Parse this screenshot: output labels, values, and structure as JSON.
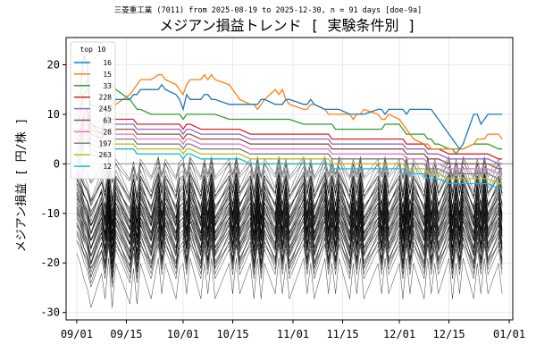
{
  "chart_data": {
    "type": "line",
    "suptitle": "三菱重工業 (7011) from 2025-08-19 to 2025-12-30, n = 91 days [doe-9a]",
    "title": "メジアン損益トレンド [ 実験条件別 ]",
    "xlabel": "",
    "ylabel": "メジアン損益 [ 円/株 ]",
    "xlim": [
      "2025-08-29",
      "2026-01-02"
    ],
    "ylim": [
      -31.5,
      25.5
    ],
    "x_ticks": [
      "09/01",
      "09/15",
      "10/01",
      "10/15",
      "11/01",
      "11/15",
      "12/01",
      "12/15",
      "01/01"
    ],
    "x_tick_dates": [
      "2025-09-01",
      "2025-09-15",
      "2025-10-01",
      "2025-10-15",
      "2025-11-01",
      "2025-11-15",
      "2025-12-01",
      "2025-12-15",
      "2026-01-01"
    ],
    "y_ticks": [
      -30,
      -20,
      -10,
      0,
      10,
      20
    ],
    "grid": true,
    "zero_line": 0,
    "legend": {
      "title": "top 10",
      "placement": "upper-left"
    },
    "x": [
      "2025-09-01",
      "2025-09-02",
      "2025-09-03",
      "2025-09-04",
      "2025-09-05",
      "2025-09-08",
      "2025-09-09",
      "2025-09-10",
      "2025-09-11",
      "2025-09-12",
      "2025-09-16",
      "2025-09-17",
      "2025-09-18",
      "2025-09-19",
      "2025-09-22",
      "2025-09-24",
      "2025-09-25",
      "2025-09-26",
      "2025-09-29",
      "2025-09-30",
      "2025-10-01",
      "2025-10-02",
      "2025-10-03",
      "2025-10-06",
      "2025-10-07",
      "2025-10-08",
      "2025-10-09",
      "2025-10-10",
      "2025-10-14",
      "2025-10-15",
      "2025-10-16",
      "2025-10-17",
      "2025-10-20",
      "2025-10-21",
      "2025-10-22",
      "2025-10-23",
      "2025-10-24",
      "2025-10-27",
      "2025-10-28",
      "2025-10-29",
      "2025-10-30",
      "2025-10-31",
      "2025-11-04",
      "2025-11-05",
      "2025-11-06",
      "2025-11-07",
      "2025-11-10",
      "2025-11-11",
      "2025-11-12",
      "2025-11-13",
      "2025-11-14",
      "2025-11-17",
      "2025-11-18",
      "2025-11-19",
      "2025-11-20",
      "2025-11-21",
      "2025-11-25",
      "2025-11-26",
      "2025-11-27",
      "2025-11-28",
      "2025-12-01",
      "2025-12-02",
      "2025-12-03",
      "2025-12-04",
      "2025-12-05",
      "2025-12-08",
      "2025-12-09",
      "2025-12-10",
      "2025-12-11",
      "2025-12-12",
      "2025-12-15",
      "2025-12-16",
      "2025-12-17",
      "2025-12-18",
      "2025-12-19",
      "2025-12-22",
      "2025-12-23",
      "2025-12-24",
      "2025-12-25",
      "2025-12-26",
      "2025-12-29",
      "2025-12-30"
    ],
    "series": [
      {
        "name": "16",
        "color": "#1f77b4",
        "values": [
          13,
          14,
          22,
          20,
          8,
          6,
          10,
          11,
          12,
          13,
          13,
          14,
          14,
          15,
          15,
          15,
          16,
          15,
          14,
          13,
          11,
          14,
          13,
          13,
          14,
          14,
          13,
          13,
          12,
          12,
          12,
          12,
          12,
          12,
          12,
          13,
          13,
          12,
          12,
          12,
          13,
          13,
          12,
          12,
          13,
          12,
          11,
          11,
          11,
          11,
          11,
          10,
          10,
          10,
          10,
          10,
          11,
          11,
          10,
          11,
          11,
          11,
          10,
          11,
          11,
          11,
          11,
          11,
          10,
          9,
          6,
          5,
          4,
          3,
          4,
          10,
          10,
          8,
          9,
          10,
          10,
          10
        ]
      },
      {
        "name": "15",
        "color": "#ff7f0e",
        "values": [
          10,
          11,
          16,
          17,
          7,
          5,
          9,
          10,
          11,
          12,
          14,
          15,
          16,
          17,
          17,
          18,
          18,
          17,
          16,
          15,
          14,
          16,
          17,
          17,
          18,
          17,
          18,
          17,
          16,
          15,
          14,
          13,
          12,
          12,
          11,
          12,
          13,
          15,
          14,
          15,
          13,
          12,
          11,
          11,
          12,
          12,
          11,
          10,
          10,
          10,
          10,
          10,
          9,
          10,
          10,
          11,
          10,
          9,
          9,
          10,
          9,
          8,
          7,
          6,
          5,
          4,
          4,
          3,
          3,
          3,
          3,
          3,
          3,
          3,
          3,
          4,
          5,
          5,
          5,
          6,
          6,
          5
        ]
      },
      {
        "name": "33",
        "color": "#2ca02c",
        "values": [
          8,
          10,
          14,
          15,
          12,
          11,
          13,
          17,
          16,
          15,
          13,
          12,
          11,
          11,
          10,
          10,
          10,
          10,
          10,
          10,
          9,
          10,
          10,
          10,
          10,
          10,
          10,
          10,
          9,
          9,
          9,
          9,
          9,
          9,
          9,
          9,
          9,
          9,
          9,
          9,
          9,
          9,
          8,
          8,
          8,
          8,
          8,
          8,
          8,
          7,
          7,
          7,
          7,
          7,
          7,
          7,
          7,
          7,
          8,
          8,
          8,
          7,
          6,
          6,
          6,
          6,
          5,
          5,
          4,
          4,
          3,
          3,
          2,
          3,
          3,
          4,
          4,
          4,
          4,
          4,
          3,
          3
        ]
      },
      {
        "name": "228",
        "color": "#d62728",
        "values": [
          6,
          7,
          10,
          11,
          8,
          7,
          8,
          9,
          9,
          9,
          9,
          9,
          8,
          8,
          8,
          8,
          8,
          8,
          8,
          8,
          7,
          8,
          8,
          7,
          7,
          7,
          7,
          7,
          7,
          7,
          7,
          7,
          6,
          6,
          6,
          6,
          6,
          6,
          6,
          6,
          6,
          6,
          6,
          6,
          6,
          6,
          6,
          6,
          5,
          5,
          5,
          5,
          5,
          5,
          5,
          5,
          5,
          5,
          5,
          5,
          5,
          5,
          4,
          4,
          4,
          4,
          3,
          3,
          3,
          3,
          2,
          2,
          2,
          2,
          2,
          2,
          2,
          2,
          2,
          2,
          1,
          1
        ]
      },
      {
        "name": "245",
        "color": "#9467bd",
        "values": [
          5,
          6,
          9,
          10,
          7,
          6,
          7,
          8,
          8,
          8,
          8,
          8,
          7,
          7,
          7,
          7,
          7,
          7,
          7,
          7,
          6,
          7,
          7,
          6,
          6,
          6,
          6,
          6,
          6,
          6,
          6,
          6,
          5,
          5,
          5,
          5,
          5,
          5,
          5,
          5,
          5,
          5,
          5,
          5,
          5,
          5,
          5,
          5,
          4,
          4,
          4,
          4,
          4,
          4,
          4,
          4,
          4,
          4,
          4,
          4,
          4,
          4,
          3,
          3,
          3,
          3,
          2,
          2,
          2,
          2,
          1,
          1,
          1,
          1,
          1,
          1,
          1,
          1,
          1,
          1,
          0,
          0
        ]
      },
      {
        "name": "63",
        "color": "#8c564b",
        "values": [
          4,
          5,
          8,
          9,
          6,
          5,
          6,
          7,
          7,
          7,
          7,
          7,
          6,
          6,
          6,
          6,
          6,
          6,
          6,
          6,
          5,
          6,
          6,
          5,
          5,
          5,
          5,
          5,
          5,
          5,
          5,
          5,
          4,
          4,
          4,
          4,
          4,
          4,
          4,
          4,
          4,
          4,
          4,
          4,
          4,
          4,
          4,
          4,
          3,
          3,
          3,
          3,
          3,
          3,
          3,
          3,
          3,
          3,
          3,
          3,
          3,
          3,
          2,
          2,
          2,
          2,
          1,
          1,
          1,
          1,
          0,
          0,
          0,
          0,
          0,
          0,
          0,
          0,
          0,
          0,
          -1,
          -1
        ]
      },
      {
        "name": "28",
        "color": "#e377c2",
        "values": [
          3,
          4,
          7,
          8,
          5,
          4,
          5,
          6,
          6,
          6,
          6,
          6,
          5,
          5,
          5,
          5,
          5,
          5,
          5,
          5,
          4,
          5,
          5,
          4,
          4,
          4,
          4,
          4,
          4,
          4,
          4,
          4,
          3,
          3,
          3,
          3,
          3,
          3,
          3,
          3,
          3,
          3,
          3,
          3,
          3,
          3,
          3,
          3,
          2,
          2,
          2,
          2,
          2,
          2,
          2,
          2,
          2,
          2,
          2,
          2,
          2,
          2,
          1,
          1,
          1,
          1,
          0,
          0,
          0,
          0,
          -1,
          -1,
          -1,
          -1,
          -1,
          -1,
          -1,
          -1,
          -1,
          -1,
          -2,
          -2
        ]
      },
      {
        "name": "197",
        "color": "#7f7f7f",
        "values": [
          2,
          3,
          6,
          7,
          4,
          3,
          4,
          5,
          5,
          5,
          5,
          5,
          4,
          4,
          4,
          4,
          4,
          4,
          4,
          4,
          3,
          4,
          4,
          3,
          3,
          3,
          3,
          3,
          3,
          3,
          3,
          3,
          2,
          2,
          2,
          2,
          2,
          2,
          2,
          2,
          2,
          2,
          2,
          2,
          2,
          2,
          2,
          2,
          1,
          1,
          1,
          1,
          1,
          1,
          1,
          1,
          1,
          1,
          1,
          1,
          1,
          1,
          0,
          0,
          0,
          0,
          -1,
          -1,
          -1,
          -1,
          -2,
          -2,
          -2,
          -2,
          -2,
          -2,
          -2,
          -2,
          -2,
          -2,
          -3,
          -3
        ]
      },
      {
        "name": "263",
        "color": "#bcbd22",
        "values": [
          1,
          2,
          5,
          6,
          3,
          2,
          3,
          4,
          4,
          4,
          4,
          4,
          3,
          3,
          3,
          3,
          3,
          3,
          3,
          3,
          2,
          3,
          3,
          2,
          2,
          2,
          2,
          2,
          2,
          2,
          2,
          2,
          1,
          1,
          1,
          1,
          1,
          1,
          1,
          1,
          1,
          1,
          1,
          1,
          1,
          1,
          1,
          1,
          0,
          0,
          0,
          0,
          0,
          0,
          0,
          0,
          0,
          0,
          0,
          0,
          0,
          0,
          -1,
          -1,
          -1,
          -1,
          -2,
          -2,
          -2,
          -2,
          -3,
          -3,
          -3,
          -3,
          -3,
          -3,
          -3,
          -3,
          -3,
          -3,
          -4,
          -4
        ]
      },
      {
        "name": "12",
        "color": "#17becf",
        "values": [
          0,
          1,
          4,
          5,
          2,
          1,
          2,
          3,
          3,
          3,
          3,
          3,
          2,
          2,
          2,
          2,
          2,
          2,
          2,
          2,
          1,
          2,
          2,
          1,
          1,
          1,
          1,
          1,
          1,
          1,
          1,
          1,
          0,
          0,
          0,
          0,
          0,
          0,
          0,
          0,
          0,
          0,
          0,
          0,
          0,
          0,
          0,
          0,
          -1,
          -1,
          -1,
          -1,
          -1,
          -1,
          -1,
          -1,
          -1,
          -1,
          -1,
          -1,
          -1,
          -1,
          -2,
          -2,
          -2,
          -2,
          -3,
          -3,
          -3,
          -3,
          -4,
          -4,
          -4,
          -4,
          -4,
          -4,
          -4,
          -4,
          -4,
          -4,
          -5,
          -5
        ]
      }
    ],
    "background_series": {
      "color": "#000000",
      "base_values": [
        -3,
        -5,
        -8,
        -10,
        -14,
        -7,
        -12,
        -4,
        -14,
        -5,
        -13,
        -6,
        -13,
        -5,
        -12,
        -4,
        -11,
        -5,
        -12,
        -6,
        -5,
        -11,
        -4,
        -12,
        -5,
        -11,
        -4,
        -12,
        -5,
        -11,
        -4,
        -11,
        -5,
        -12,
        -4,
        -12,
        -5,
        -11,
        -4,
        -11,
        -5,
        -12,
        -4,
        -11,
        -5,
        -12,
        -4,
        -11,
        -5,
        -11,
        -4,
        -12,
        -5,
        -11,
        -4,
        -12,
        -5,
        -11,
        -4,
        -11,
        -5,
        -12,
        -4,
        -11,
        -5,
        -12,
        -4,
        -11,
        -5,
        -11,
        -4,
        -12,
        -5,
        -11,
        -4,
        -12,
        -5,
        -11,
        -4,
        -11,
        -5,
        -11
      ],
      "offsets": [
        4.5,
        3.5,
        2.5,
        2.0,
        1.5,
        1.0,
        0.6,
        0.3,
        0.0,
        -0.3,
        -0.6,
        -0.9,
        -1.2,
        -1.5,
        -1.8,
        -2.1,
        -2.4,
        -2.7,
        -3.0,
        -3.3,
        -3.6,
        -3.9,
        -4.2,
        -4.5,
        -4.8,
        -5.1,
        -5.4,
        -5.7,
        -6.0,
        -6.3,
        -6.6,
        -6.9,
        -7.2,
        -7.5,
        -7.8,
        -8.1,
        -8.4,
        -8.7,
        -9.0,
        -9.5,
        -10.0,
        -10.5,
        -11.0,
        -11.5,
        -12.0,
        -13.0,
        -14.0,
        -15.0
      ],
      "amplitudes": [
        1.0,
        0.6,
        0.9,
        0.5,
        1.1,
        0.8,
        0.7,
        1.2,
        0.9,
        0.6,
        1.0,
        0.8,
        1.1,
        0.7,
        0.9,
        1.0,
        0.6,
        1.2,
        0.8,
        0.9,
        1.0,
        0.7,
        1.1,
        0.8,
        0.9,
        1.0,
        0.6,
        1.2,
        0.8,
        0.9,
        1.0,
        0.7,
        1.1,
        0.8,
        0.9,
        1.0,
        0.6,
        1.2,
        0.8,
        0.9,
        1.0,
        0.7,
        1.1,
        0.8,
        0.9,
        1.0,
        0.6,
        1.2
      ]
    }
  }
}
